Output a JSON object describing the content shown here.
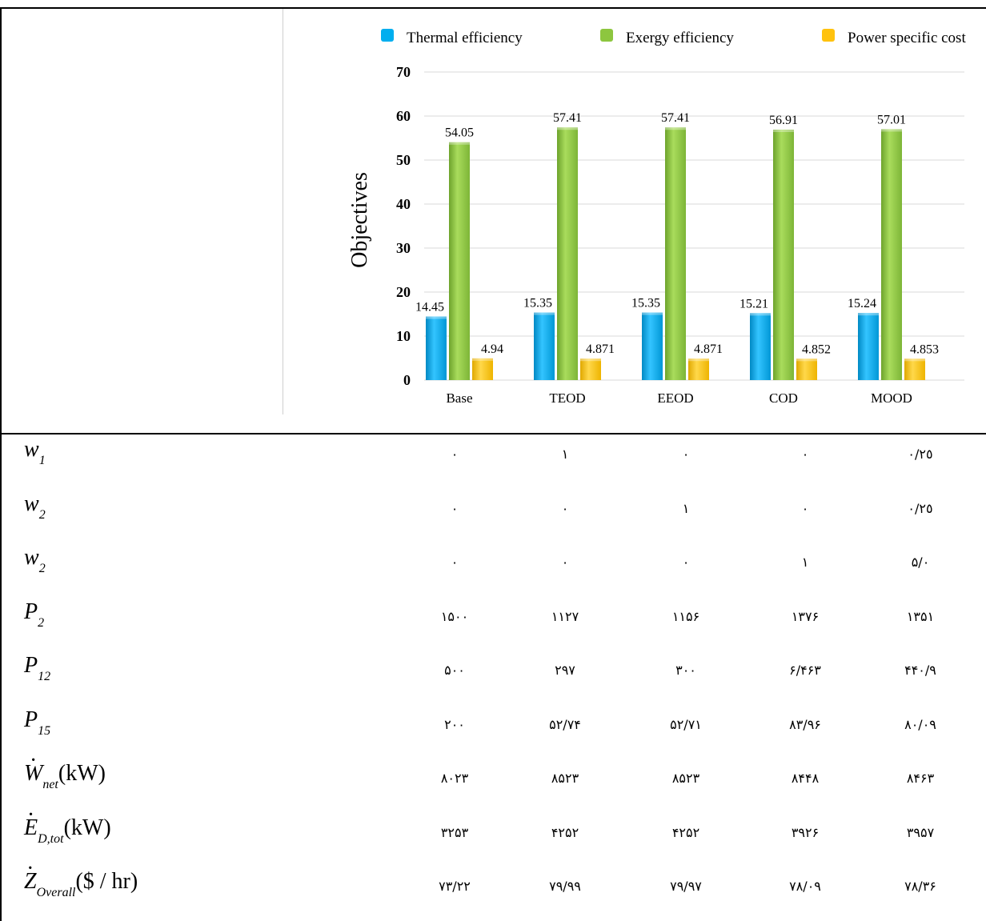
{
  "chart_data": {
    "type": "bar",
    "categories": [
      "Base",
      "TEOD",
      "EEOD",
      "COD",
      "MOOD"
    ],
    "series": [
      {
        "name": "Thermal efficiency",
        "values": [
          14.45,
          15.35,
          15.35,
          15.21,
          15.24
        ],
        "labels": [
          "14.45",
          "15.35",
          "15.35",
          "15.21",
          "15.24"
        ],
        "color": "#00aeef"
      },
      {
        "name": "Exergy efficiency",
        "values": [
          54.05,
          57.41,
          57.41,
          56.91,
          57.01
        ],
        "labels": [
          "54.05",
          "57.41",
          "57.41",
          "56.91",
          "57.01"
        ],
        "color": "#8dc63f"
      },
      {
        "name": "Power specific cost",
        "values": [
          4.94,
          4.871,
          4.871,
          4.852,
          4.853
        ],
        "labels": [
          "4.94",
          "4.871",
          "4.871",
          "4.852",
          "4.853"
        ],
        "color": "#ffc20e"
      }
    ],
    "ylabel": "Objectives",
    "yticks": [
      "0",
      "10",
      "20",
      "30",
      "40",
      "50",
      "60",
      "70"
    ],
    "ylim": [
      0,
      70
    ],
    "grid": true,
    "legend": "top"
  },
  "table": {
    "rows": [
      {
        "var": "w",
        "sub": "1",
        "values": [
          "٠",
          "١",
          "٠",
          "٠",
          "٠/٢٥"
        ]
      },
      {
        "var": "w",
        "sub": "2",
        "values": [
          "٠",
          "٠",
          "١",
          "٠",
          "٠/٢٥"
        ]
      },
      {
        "var": "w",
        "sub": "2",
        "values": [
          "٠",
          "٠",
          "٠",
          "١",
          "٠/۵"
        ]
      },
      {
        "var": "P",
        "sub": "2",
        "values": [
          "١۵٠٠",
          "١١٢٧",
          "١١۵۶",
          "١٣٧۶",
          "١٣۵١"
        ]
      },
      {
        "var": "P",
        "sub": "12",
        "values": [
          "۵٠٠",
          "٢٩٧",
          "٣٠٠",
          "۴۶٣/۶",
          "۴۴٠/٩"
        ]
      },
      {
        "var": "P",
        "sub": "15",
        "values": [
          "٢٠٠",
          "۵٢/٧۴",
          "۵٢/٧١",
          "٨٣/٩۶",
          "٨٠/٠٩"
        ]
      },
      {
        "var": "W",
        "sub": "net",
        "unit": "(kW)",
        "dot": true,
        "values": [
          "٨٠٢٣",
          "٨۵٢٣",
          "٨۵٢٣",
          "٨۴۴٨",
          "٨۴۶٣"
        ]
      },
      {
        "var": "E",
        "sub": "D,tot",
        "unit": "(kW)",
        "dot": true,
        "values": [
          "٣٢۵٣",
          "۴٢۵٢",
          "۴٢۵٢",
          "٣٩٢۶",
          "٣٩۵٧"
        ]
      },
      {
        "var": "Z",
        "sub": "Overall",
        "unit": "($ / hr)",
        "dot": true,
        "values": [
          "٧٣/٢٢",
          "٧٩/٩٩",
          "٧٩/٩٧",
          "٧٨/٠٩",
          "٧٨/٣۶"
        ]
      }
    ]
  }
}
